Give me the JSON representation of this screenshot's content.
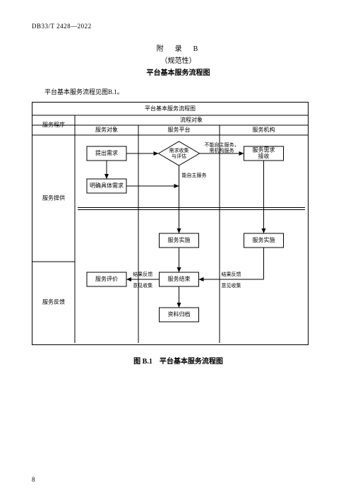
{
  "doc_code": "DB33/T 2428—2022",
  "appendix_line": "附　录　B",
  "normative_line": "（规范性）",
  "appendix_title": "平台基本服务流程图",
  "intro_text": "平台基本服务流程见图B.1。",
  "figure_caption": "图 B.1　平台基本服务流程图",
  "page_number": "8",
  "diagram": {
    "title": "平台基本服务流程图",
    "row_header": "服务程序",
    "col_group_header": "流程对象",
    "cols": [
      "服务对象",
      "服务平台",
      "服务机构"
    ],
    "row_labels": [
      "服务提供",
      "服务反馈"
    ],
    "nodes": {
      "n_need": "提出需求",
      "n_decide": "需求收集\n与评估",
      "n_recv": "服务需求\n接收",
      "n_clarify": "明确具体需求",
      "n_impl_p": "服务实施",
      "n_impl_o": "服务实施",
      "n_end": "服务结束",
      "n_eval": "服务评价",
      "n_archive": "资料归档"
    },
    "edge_labels": {
      "cannot": "不能自主服务，\n需机构服务",
      "can": "能自主服务",
      "fb": "结果反馈",
      "opinion": "意见收集"
    },
    "style": {
      "stroke": "#000000",
      "bg": "#ffffff",
      "font_node": 8,
      "font_edge": 7,
      "font_header": 8
    }
  }
}
